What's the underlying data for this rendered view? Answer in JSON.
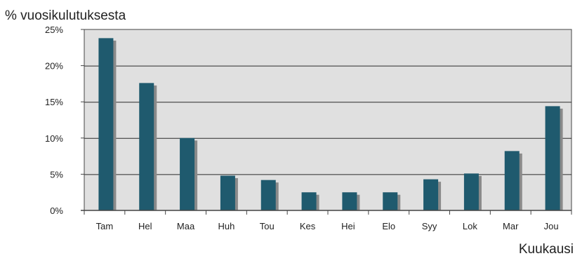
{
  "chart_data": {
    "type": "bar",
    "title": "",
    "ylabel": "% vuosikulutuksesta",
    "xlabel": "Kuukausi",
    "categories": [
      "Tam",
      "Hel",
      "Maa",
      "Huh",
      "Tou",
      "Kes",
      "Hei",
      "Elo",
      "Syy",
      "Lok",
      "Mar",
      "Jou"
    ],
    "series": [
      {
        "values": [
          23.8,
          17.6,
          10.0,
          4.8,
          4.2,
          2.5,
          2.5,
          2.5,
          4.3,
          5.1,
          8.2,
          14.4
        ]
      }
    ],
    "ylim": [
      0,
      25
    ],
    "yticks": [
      0,
      5,
      10,
      15,
      20,
      25
    ],
    "ytick_labels": [
      "0%",
      "5%",
      "10%",
      "15%",
      "20%",
      "25%"
    ],
    "grid": true,
    "legend": "none",
    "colors": {
      "bar": "#1f5a6e",
      "bar_shadow": "#8a8a8a",
      "plot_background": "#e0e0e0",
      "grid": "#2a2a2a",
      "axis": "#444444"
    }
  }
}
